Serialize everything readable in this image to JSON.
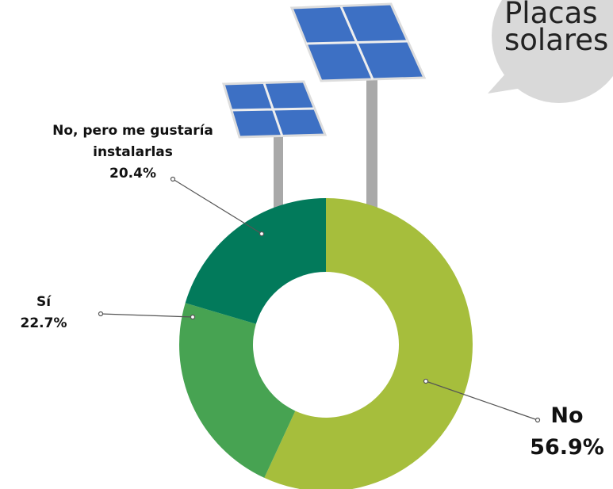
{
  "chart_data": {
    "type": "donut",
    "annotation": "Placas solares",
    "categories": [
      "No",
      "Sí",
      "No, pero me gustaría instalarlas"
    ],
    "values": [
      56.9,
      22.7,
      20.4
    ],
    "value_labels": [
      "56.9%",
      "22.7%",
      "20.4%"
    ],
    "colors": [
      "#a6be3c",
      "#47a352",
      "#027a5b"
    ]
  }
}
